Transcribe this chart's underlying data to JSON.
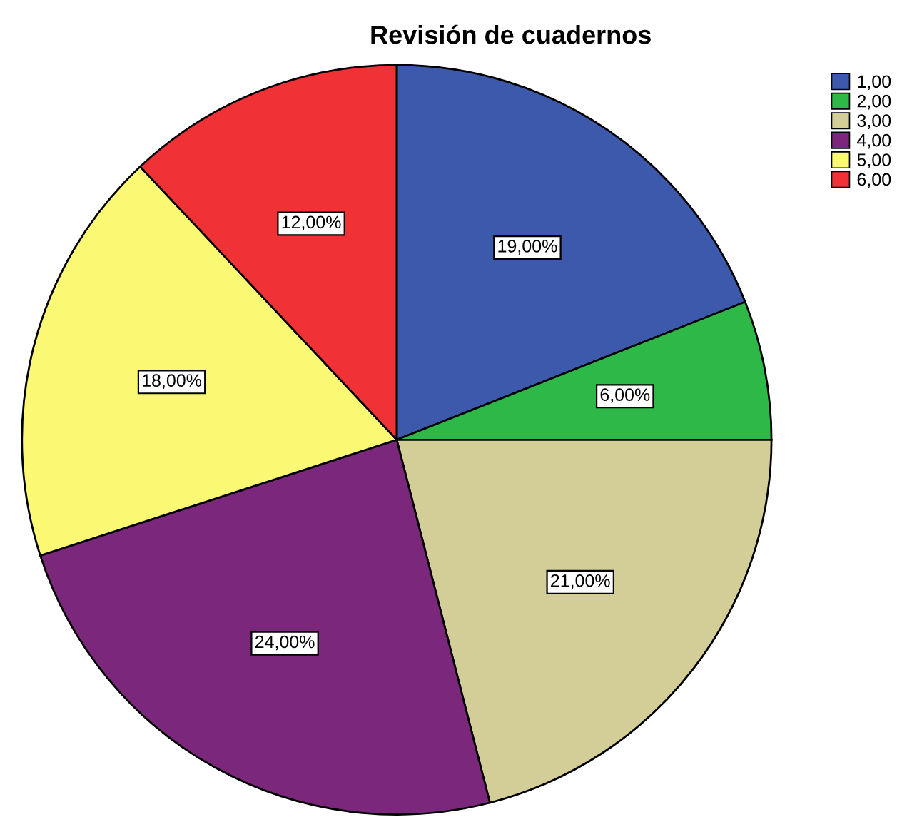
{
  "chart_data": {
    "type": "pie",
    "title": "Revisión de cuadernos",
    "categories": [
      "1,00",
      "2,00",
      "3,00",
      "4,00",
      "5,00",
      "6,00"
    ],
    "values": [
      19,
      6,
      21,
      24,
      18,
      12
    ],
    "colors": [
      "#3d59ab",
      "#2eb848",
      "#d3ce97",
      "#7b277b",
      "#fbf873",
      "#f03236"
    ],
    "value_labels": [
      "19,00%",
      "6,00%",
      "21,00%",
      "24,00%",
      "18,00%",
      "12,00%"
    ],
    "legend": "top right"
  }
}
